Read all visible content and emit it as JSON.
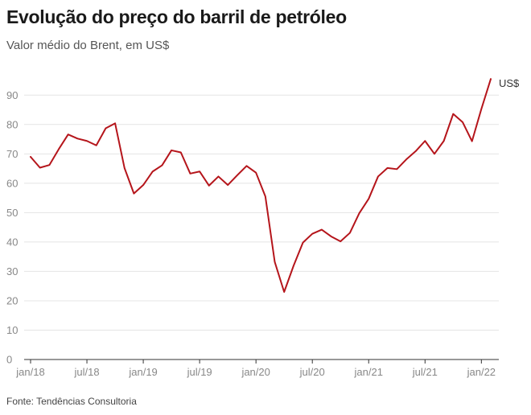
{
  "header": {
    "title": "Evolução do preço do barril de petróleo",
    "subtitle": "Valor médio do Brent, em US$"
  },
  "footer": {
    "source": "Fonte: Tendências Consultoria"
  },
  "chart_data": {
    "type": "line",
    "unit_label": "US$",
    "ylim": [
      0,
      95
    ],
    "yticks": [
      0,
      10,
      20,
      30,
      40,
      50,
      60,
      70,
      80,
      90
    ],
    "grid": true,
    "x_tick_labels": [
      "jan/18",
      "jul/18",
      "jan/19",
      "jul/19",
      "jan/20",
      "jul/20",
      "jan/21",
      "jul/21",
      "jan/22"
    ],
    "x_tick_months": [
      "2018-01",
      "2018-07",
      "2019-01",
      "2019-07",
      "2020-01",
      "2020-07",
      "2021-01",
      "2021-07",
      "2022-01"
    ],
    "series": [
      {
        "color": "#b5151b",
        "x": [
          "2018-01",
          "2018-02",
          "2018-03",
          "2018-04",
          "2018-05",
          "2018-06",
          "2018-07",
          "2018-08",
          "2018-09",
          "2018-10",
          "2018-11",
          "2018-12",
          "2019-01",
          "2019-02",
          "2019-03",
          "2019-04",
          "2019-05",
          "2019-06",
          "2019-07",
          "2019-08",
          "2019-09",
          "2019-10",
          "2019-11",
          "2019-12",
          "2020-01",
          "2020-02",
          "2020-03",
          "2020-04",
          "2020-05",
          "2020-06",
          "2020-07",
          "2020-08",
          "2020-09",
          "2020-10",
          "2020-11",
          "2020-12",
          "2021-01",
          "2021-02",
          "2021-03",
          "2021-04",
          "2021-05",
          "2021-06",
          "2021-07",
          "2021-08",
          "2021-09",
          "2021-10",
          "2021-11",
          "2021-12",
          "2022-01",
          "2022-02"
        ],
        "values": [
          69.0,
          65.3,
          66.2,
          71.6,
          76.6,
          75.2,
          74.4,
          72.9,
          78.7,
          80.4,
          65.2,
          56.5,
          59.4,
          64.0,
          66.1,
          71.2,
          70.5,
          63.3,
          64.0,
          59.2,
          62.3,
          59.4,
          62.7,
          65.9,
          63.6,
          55.5,
          33.2,
          23.0,
          31.9,
          39.8,
          42.8,
          44.2,
          41.9,
          40.2,
          43.1,
          49.8,
          54.7,
          62.3,
          65.2,
          64.8,
          68.1,
          70.9,
          74.4,
          70.0,
          74.4,
          83.6,
          80.8,
          74.3,
          85.3,
          95.5
        ]
      }
    ]
  }
}
